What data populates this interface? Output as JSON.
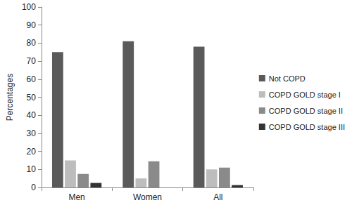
{
  "chart_data": {
    "type": "bar",
    "categories": [
      "Men",
      "Women",
      "All"
    ],
    "series": [
      {
        "name": "Not COPD",
        "color": "#5a5a5a",
        "values": [
          75,
          81,
          78
        ]
      },
      {
        "name": "COPD GOLD stage I",
        "color": "#bdbdbd",
        "values": [
          15,
          5,
          10
        ]
      },
      {
        "name": "COPD GOLD stage II",
        "color": "#8a8a8a",
        "values": [
          7.5,
          14.5,
          11
        ]
      },
      {
        "name": "COPD GOLD stage III",
        "color": "#333333",
        "values": [
          2.5,
          0,
          1.3
        ]
      }
    ],
    "y_label": "Percentages",
    "ylim": [
      0,
      100
    ],
    "yticks": [
      0,
      10,
      20,
      30,
      40,
      50,
      60,
      70,
      80,
      90,
      100
    ],
    "grid": false,
    "legend": "right"
  }
}
